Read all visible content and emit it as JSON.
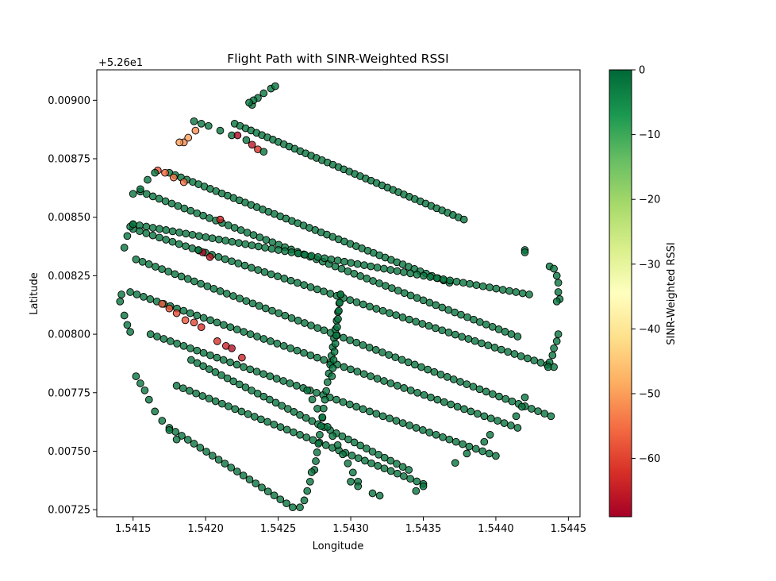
{
  "chart_data": {
    "type": "scatter",
    "title": "Flight Path with SINR-Weighted RSSI",
    "xlabel": "Longitude",
    "ylabel": "Latitude",
    "y_offset_label": "+5.26e1",
    "xlim": [
      1.54125,
      1.54458
    ],
    "ylim": [
      0.00722,
      0.00913
    ],
    "x_ticks": [
      1.5415,
      1.542,
      1.5425,
      1.543,
      1.5435,
      1.544,
      1.5445
    ],
    "x_tick_labels": [
      "1.5415",
      "1.5420",
      "1.5425",
      "1.5430",
      "1.5435",
      "1.5440",
      "1.5445"
    ],
    "y_ticks": [
      0.00725,
      0.0075,
      0.00775,
      0.008,
      0.00825,
      0.0085,
      0.00875,
      0.009
    ],
    "y_tick_labels": [
      "0.00725",
      "0.00750",
      "0.00775",
      "0.00800",
      "0.00825",
      "0.00850",
      "0.00875",
      "0.00900"
    ],
    "grid": false,
    "colorbar": {
      "label": "SINR-Weighted RSSI",
      "colormap": "RdYlGn",
      "range": [
        -69,
        0
      ],
      "ticks": [
        0,
        -10,
        -20,
        -30,
        -40,
        -50,
        -60
      ],
      "tick_labels": [
        "0",
        "−10",
        "−20",
        "−30",
        "−40",
        "−50",
        "−60"
      ]
    },
    "marker_alpha": 0.8,
    "marker_edge_color": "#000000",
    "flight_lines": [
      {
        "from": [
          1.54252,
          1.54465
        ],
        "to": [
          1.5426,
          1.54365
        ],
        "from_y": [
          0.00902,
          0.00746
        ],
        "to_y": [
          0.00772,
          0.00746
        ],
        "values": [
          -2,
          -2
        ]
      },
      {
        "from_x": 1.54162,
        "to_x": 1.54443,
        "from_y": 0.00818,
        "to_y": 0.00733
      },
      {
        "from_x": 1.54155,
        "to_x": 1.54433,
        "from_y": 0.0083,
        "to_y": 0.00745
      },
      {
        "from_x": 1.5415,
        "to_x": 1.5439,
        "from_y": 0.00845,
        "to_y": 0.0075
      }
    ],
    "points": [
      [
        1.54192,
        0.00891,
        -2
      ],
      [
        1.54197,
        0.0089,
        -2
      ],
      [
        1.54202,
        0.00889,
        -2
      ],
      [
        1.5421,
        0.00887,
        -2
      ],
      [
        1.54218,
        0.00885,
        -2
      ],
      [
        1.54222,
        0.00885,
        -68
      ],
      [
        1.54228,
        0.00883,
        -2
      ],
      [
        1.54232,
        0.00881,
        -66
      ],
      [
        1.54236,
        0.00879,
        -62
      ],
      [
        1.5424,
        0.00878,
        -2
      ],
      [
        1.54185,
        0.00882,
        -52
      ],
      [
        1.54188,
        0.00884,
        -50
      ],
      [
        1.54193,
        0.00887,
        -52
      ],
      [
        1.54182,
        0.00882,
        -50
      ],
      [
        1.54167,
        0.0087,
        -58
      ],
      [
        1.54172,
        0.00869,
        -56
      ],
      [
        1.54178,
        0.00867,
        -54
      ],
      [
        1.54185,
        0.00865,
        -55
      ],
      [
        1.54165,
        0.00869,
        -2
      ],
      [
        1.5416,
        0.00866,
        -2
      ],
      [
        1.54155,
        0.00862,
        -2
      ],
      [
        1.5415,
        0.0086,
        -2
      ],
      [
        1.5421,
        0.00849,
        -64
      ],
      [
        1.54203,
        0.00833,
        -66
      ],
      [
        1.54198,
        0.00835,
        -68
      ],
      [
        1.54195,
        0.00836,
        -2
      ],
      [
        1.5417,
        0.00813,
        -57
      ],
      [
        1.54175,
        0.00811,
        -58
      ],
      [
        1.5418,
        0.00809,
        -59
      ],
      [
        1.54186,
        0.00806,
        -58
      ],
      [
        1.54192,
        0.00805,
        -60
      ],
      [
        1.54197,
        0.00803,
        -62
      ],
      [
        1.54208,
        0.00797,
        -62
      ],
      [
        1.54214,
        0.00795,
        -64
      ],
      [
        1.54218,
        0.00794,
        -67
      ],
      [
        1.54225,
        0.0079,
        -64
      ],
      [
        1.5442,
        0.00836,
        -2
      ],
      [
        1.5442,
        0.00835,
        -2
      ],
      [
        1.54437,
        0.00829,
        -2
      ],
      [
        1.5444,
        0.00828,
        -2
      ],
      [
        1.54442,
        0.00825,
        -2
      ],
      [
        1.54443,
        0.00822,
        -2
      ],
      [
        1.54443,
        0.00818,
        -2
      ],
      [
        1.54444,
        0.00815,
        -2
      ],
      [
        1.54442,
        0.00814,
        -2
      ],
      [
        1.54443,
        0.008,
        -2
      ],
      [
        1.54442,
        0.00797,
        -2
      ],
      [
        1.5444,
        0.00794,
        -2
      ],
      [
        1.54439,
        0.00791,
        -2
      ],
      [
        1.54437,
        0.00788,
        -2
      ],
      [
        1.54436,
        0.00786,
        -2
      ],
      [
        1.5442,
        0.00773,
        -2
      ],
      [
        1.54418,
        0.00769,
        -2
      ],
      [
        1.54414,
        0.00765,
        -2
      ],
      [
        1.54396,
        0.00757,
        -2
      ],
      [
        1.54392,
        0.00754,
        -2
      ],
      [
        1.5438,
        0.00749,
        -2
      ],
      [
        1.54372,
        0.00745,
        -2
      ],
      [
        1.5435,
        0.00735,
        -2
      ],
      [
        1.54345,
        0.00733,
        -2
      ],
      [
        1.5432,
        0.00731,
        -2
      ],
      [
        1.54315,
        0.00732,
        -2
      ],
      [
        1.54305,
        0.00735,
        -2
      ],
      [
        1.543,
        0.00737,
        -2
      ],
      [
        1.54265,
        0.00726,
        -2
      ],
      [
        1.54268,
        0.00729,
        -2
      ],
      [
        1.5427,
        0.00733,
        -2
      ],
      [
        1.54272,
        0.00737,
        -2
      ],
      [
        1.54273,
        0.00741,
        -2
      ],
      [
        1.54152,
        0.00782,
        -2
      ],
      [
        1.54155,
        0.00779,
        -2
      ],
      [
        1.54158,
        0.00776,
        -2
      ],
      [
        1.54161,
        0.00772,
        -2
      ],
      [
        1.54165,
        0.00767,
        -2
      ],
      [
        1.5417,
        0.00763,
        -2
      ],
      [
        1.54175,
        0.00759,
        -2
      ],
      [
        1.5418,
        0.00755,
        -2
      ],
      [
        1.54142,
        0.00817,
        -2
      ],
      [
        1.54141,
        0.00814,
        -2
      ],
      [
        1.54144,
        0.00808,
        -2
      ],
      [
        1.54146,
        0.00804,
        -2
      ],
      [
        1.54148,
        0.00801,
        -2
      ],
      [
        1.54144,
        0.00837,
        -2
      ],
      [
        1.54146,
        0.00842,
        -2
      ],
      [
        1.54148,
        0.00846,
        -2
      ],
      [
        1.5415,
        0.00847,
        -2
      ],
      [
        1.54232,
        0.00898,
        -2
      ],
      [
        1.54236,
        0.00901,
        -2
      ],
      [
        1.5424,
        0.00903,
        -2
      ],
      [
        1.54245,
        0.00905,
        -2
      ],
      [
        1.54248,
        0.00906,
        -2
      ],
      [
        1.54233,
        0.009,
        -2
      ],
      [
        1.5423,
        0.00899,
        -2
      ]
    ]
  }
}
